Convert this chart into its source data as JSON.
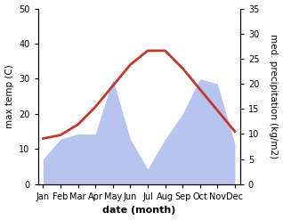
{
  "months": [
    "Jan",
    "Feb",
    "Mar",
    "Apr",
    "May",
    "Jun",
    "Jul",
    "Aug",
    "Sep",
    "Oct",
    "Nov",
    "Dec"
  ],
  "temp": [
    13,
    14,
    17,
    22,
    28,
    34,
    38,
    38,
    33,
    27,
    21,
    15
  ],
  "precip": [
    5,
    9,
    10,
    10,
    21,
    9,
    3,
    9,
    14,
    21,
    20,
    8
  ],
  "temp_ylim": [
    0,
    50
  ],
  "precip_ylim": [
    0,
    35
  ],
  "temp_color": "#c0392b",
  "precip_color_fill": "#b8c4f0",
  "bg_color": "#ffffff",
  "xlabel": "date (month)",
  "ylabel_left": "max temp (C)",
  "ylabel_right": "med. precipitation (kg/m2)",
  "temp_lw": 2.0,
  "xlabel_fontsize": 8,
  "ylabel_fontsize": 7.5,
  "tick_fontsize": 7
}
